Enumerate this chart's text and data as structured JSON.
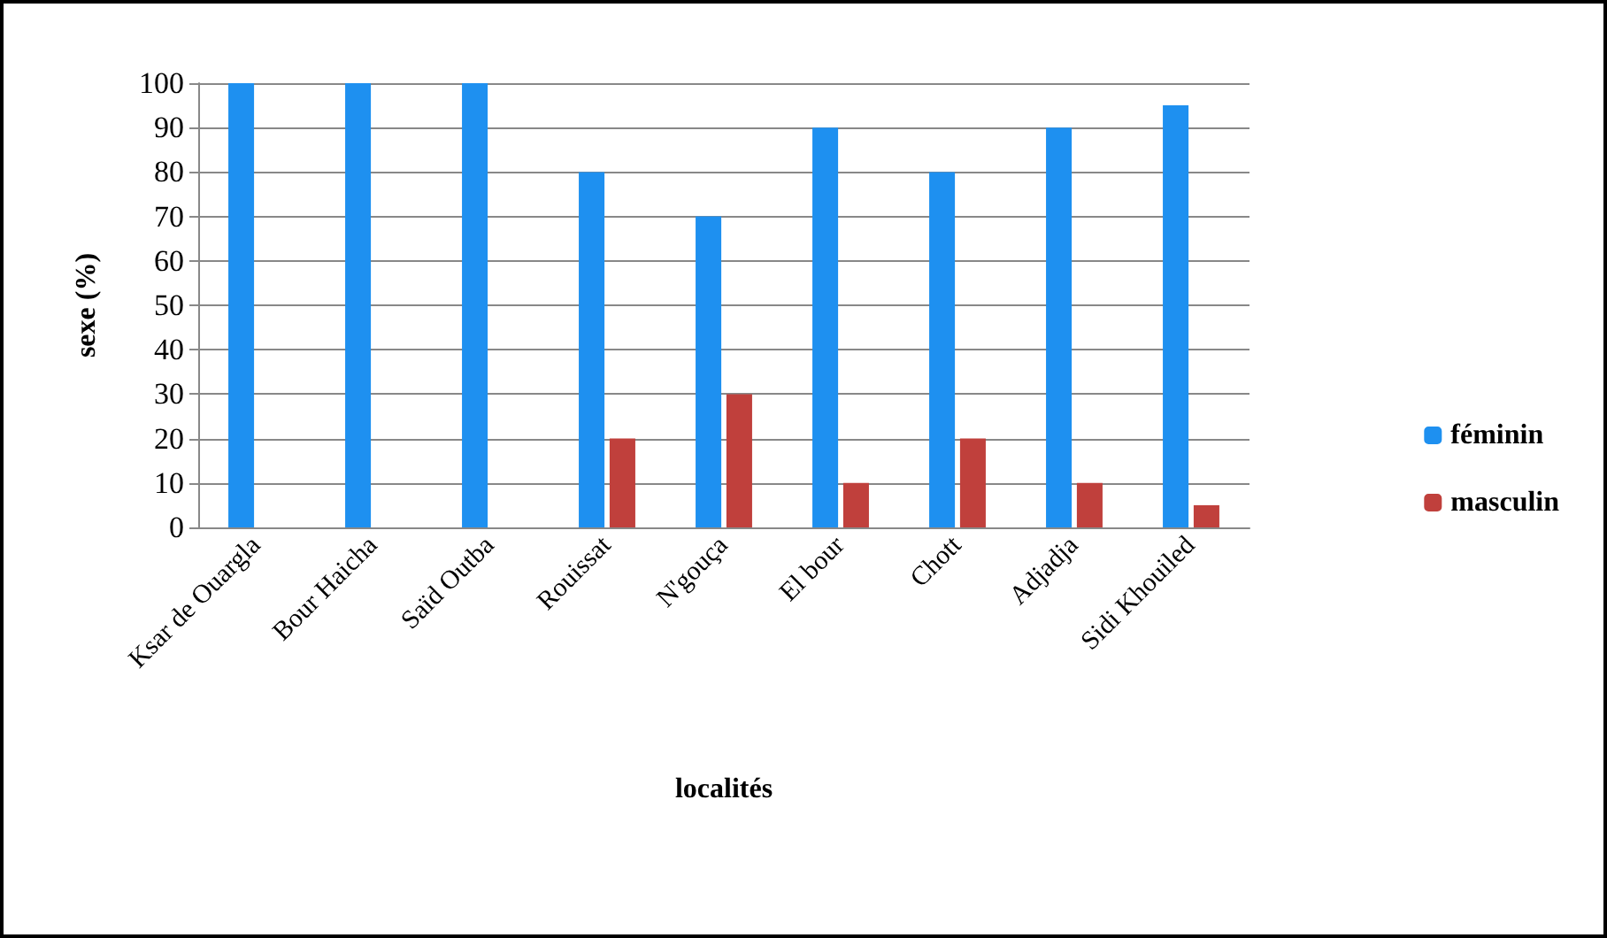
{
  "chart_data": {
    "type": "bar",
    "xlabel": "localités",
    "ylabel": "sexe (%)",
    "categories": [
      "Ksar de Ouargla",
      "Bour Haicha",
      "Saïd Outba",
      "Rouissat",
      "N'gouça",
      "El bour",
      "Chott",
      "Adjadja",
      "Sidi Khouiled"
    ],
    "series": [
      {
        "name": "féminin",
        "color": "#1e90f0",
        "values": [
          100,
          100,
          100,
          80,
          70,
          90,
          80,
          90,
          95
        ]
      },
      {
        "name": "masculin",
        "color": "#c0403c",
        "values": [
          0,
          0,
          0,
          20,
          30,
          10,
          20,
          10,
          5
        ]
      }
    ],
    "ylim": [
      0,
      100
    ],
    "yticks": [
      0,
      10,
      20,
      30,
      40,
      50,
      60,
      70,
      80,
      90,
      100
    ],
    "grid": "y",
    "legend": "right"
  }
}
